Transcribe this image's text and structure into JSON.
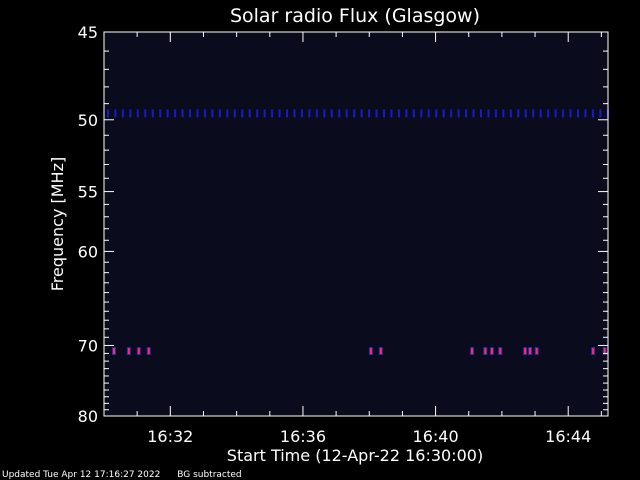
{
  "chart_data": {
    "type": "heatmap",
    "title": "Solar radio Flux (Glasgow)",
    "xlabel": "Start Time (12-Apr-22 16:30:00)",
    "ylabel": "Frequency [MHz]",
    "x_tick_labels": [
      "16:32",
      "16:36",
      "16:40",
      "16:44"
    ],
    "x_ticks_min": [
      2,
      6,
      10,
      14
    ],
    "xlim_min": [
      0,
      15.2
    ],
    "y_tick_labels": [
      "45",
      "50",
      "55",
      "60",
      "70",
      "80"
    ],
    "y_ticks_mhz": [
      45,
      50,
      55,
      60,
      70,
      80
    ],
    "ylim_mhz": [
      45,
      80
    ],
    "y_scale": "reciprocal",
    "grid": false,
    "colors": {
      "background": "#0b0b1e",
      "band_50": "#1a1acc",
      "band_70": "#ff2a6a"
    },
    "series": [
      {
        "frequency_mhz": 49.6,
        "level": 0.5,
        "persistent": true
      },
      {
        "frequency_mhz": 70.7,
        "level": 1.0,
        "bursts_min": [
          0.3,
          0.75,
          1.05,
          1.35,
          8.05,
          8.35,
          11.1,
          11.5,
          11.7,
          11.95,
          12.7,
          12.85,
          13.05,
          14.75,
          15.1
        ]
      }
    ]
  },
  "footer": {
    "updated": "Updated Tue Apr 12 17:16:27 2022",
    "note": "BG subtracted"
  }
}
